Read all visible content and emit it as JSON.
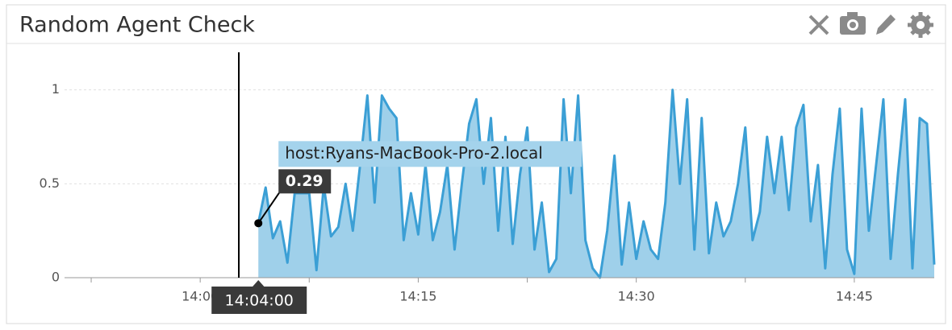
{
  "chart_data": {
    "type": "area",
    "title": "Random Agent Check",
    "x": [
      "14:04:00",
      "14:04:30",
      "14:05:00",
      "14:05:30",
      "14:06:00",
      "14:06:30",
      "14:07:00",
      "14:07:30",
      "14:08:00",
      "14:08:30",
      "14:09:00",
      "14:09:30",
      "14:10:00",
      "14:10:30",
      "14:11:00",
      "14:11:30",
      "14:12:00",
      "14:12:30",
      "14:13:00",
      "14:13:30",
      "14:14:00",
      "14:14:30",
      "14:15:00",
      "14:15:30",
      "14:16:00",
      "14:16:30",
      "14:17:00",
      "14:17:30",
      "14:18:00",
      "14:18:30",
      "14:19:00",
      "14:19:30",
      "14:20:00",
      "14:20:30",
      "14:21:00",
      "14:21:30",
      "14:22:00",
      "14:22:30",
      "14:23:00",
      "14:23:30",
      "14:24:00",
      "14:24:30",
      "14:25:00",
      "14:25:30",
      "14:26:00",
      "14:26:30",
      "14:27:00",
      "14:27:30",
      "14:28:00",
      "14:28:30",
      "14:29:00",
      "14:29:30",
      "14:30:00",
      "14:30:30",
      "14:31:00",
      "14:31:30",
      "14:32:00",
      "14:32:30",
      "14:33:00",
      "14:33:30",
      "14:34:00",
      "14:34:30",
      "14:35:00",
      "14:35:30",
      "14:36:00",
      "14:36:30",
      "14:37:00",
      "14:37:30",
      "14:38:00",
      "14:38:30",
      "14:39:00",
      "14:39:30",
      "14:40:00",
      "14:40:30",
      "14:41:00",
      "14:41:30",
      "14:42:00",
      "14:42:30",
      "14:43:00",
      "14:43:30",
      "14:44:00",
      "14:44:30",
      "14:45:00",
      "14:45:30",
      "14:46:00",
      "14:46:30",
      "14:47:00",
      "14:47:30",
      "14:48:00",
      "14:48:30",
      "14:49:00",
      "14:49:30",
      "14:50:00",
      "14:50:30"
    ],
    "series": [
      {
        "name": "host:Ryans-MacBook-Pro-2.local",
        "color": "#3b9fd5",
        "fill": "#9fd0ea",
        "values": [
          0.29,
          0.48,
          0.21,
          0.3,
          0.08,
          0.45,
          0.45,
          0.45,
          0.04,
          0.49,
          0.22,
          0.27,
          0.5,
          0.25,
          0.6,
          0.97,
          0.4,
          0.97,
          0.9,
          0.85,
          0.2,
          0.45,
          0.23,
          0.6,
          0.2,
          0.35,
          0.6,
          0.15,
          0.5,
          0.82,
          0.95,
          0.5,
          0.85,
          0.25,
          0.75,
          0.18,
          0.55,
          0.8,
          0.15,
          0.4,
          0.03,
          0.1,
          0.95,
          0.45,
          0.97,
          0.2,
          0.05,
          0.0,
          0.25,
          0.65,
          0.07,
          0.4,
          0.1,
          0.3,
          0.15,
          0.1,
          0.4,
          1.0,
          0.5,
          0.95,
          0.15,
          0.85,
          0.13,
          0.4,
          0.22,
          0.3,
          0.5,
          0.8,
          0.2,
          0.35,
          0.75,
          0.45,
          0.75,
          0.36,
          0.8,
          0.92,
          0.3,
          0.6,
          0.05,
          0.55,
          0.9,
          0.15,
          0.02,
          0.9,
          0.25,
          0.6,
          0.95,
          0.1,
          0.55,
          0.95,
          0.05,
          0.85,
          0.82,
          0.07
        ]
      }
    ],
    "xlim": [
      "13:50:40",
      "14:50:30"
    ],
    "xticks": [
      {
        "value": "14:00:00",
        "label": "14:00"
      },
      {
        "value": "14:15:00",
        "label": "14:15"
      },
      {
        "value": "14:30:00",
        "label": "14:30"
      },
      {
        "value": "14:45:00",
        "label": "14:45"
      }
    ],
    "minor_xticks": [
      "13:52:30",
      "14:07:30",
      "14:22:30",
      "14:37:30"
    ],
    "ylim": [
      0,
      1.2
    ],
    "yticks": [
      0,
      0.5,
      1
    ],
    "grid": true
  }
}
